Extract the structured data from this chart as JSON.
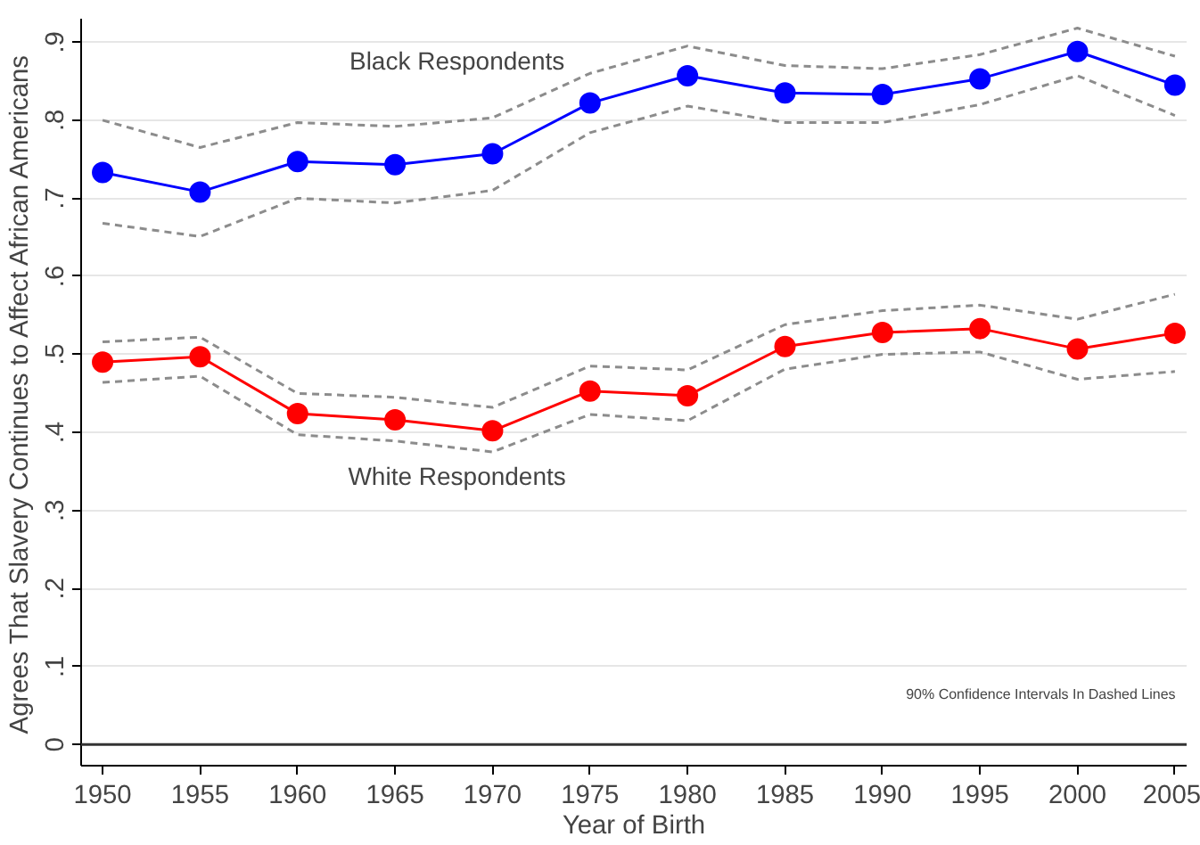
{
  "chart_data": {
    "type": "line",
    "xlabel": "Year of Birth",
    "ylabel": "Agrees That Slavery Continues to Affect African Americans",
    "x": [
      1950,
      1955,
      1960,
      1965,
      1970,
      1975,
      1980,
      1985,
      1990,
      1995,
      2000,
      2005
    ],
    "xlim": [
      1948.9,
      2005.6
    ],
    "xticks": [
      1950,
      1955,
      1960,
      1965,
      1970,
      1975,
      1980,
      1985,
      1990,
      1995,
      2000,
      2005
    ],
    "ylim": [
      -0.027,
      0.93
    ],
    "yticks": [
      0,
      {
        "value": 0.1,
        "label": ".1"
      },
      {
        "value": 0.2,
        "label": ".2"
      },
      {
        "value": 0.3,
        "label": ".3"
      },
      {
        "value": 0.4,
        "label": ".4"
      },
      {
        "value": 0.5,
        "label": ".5"
      },
      {
        "value": 0.6,
        "label": ".6"
      },
      {
        "value": 0.7,
        "label": ".7"
      },
      {
        "value": 0.8,
        "label": ".8"
      },
      {
        "value": 0.9,
        "label": ".9"
      }
    ],
    "grid": "y",
    "marker": "circle",
    "line_style": "solid",
    "series": [
      {
        "color": "#8c8c8c",
        "line_style": "dashed",
        "marker": "none",
        "values": [
          0.8,
          0.765,
          0.797,
          0.792,
          0.803,
          0.86,
          0.895,
          0.87,
          0.866,
          0.884,
          0.918,
          0.882
        ]
      },
      {
        "color": "#8c8c8c",
        "line_style": "dashed",
        "marker": "none",
        "values": [
          0.668,
          0.651,
          0.7,
          0.694,
          0.71,
          0.784,
          0.818,
          0.797,
          0.797,
          0.82,
          0.857,
          0.806
        ]
      },
      {
        "color": "#8c8c8c",
        "line_style": "dashed",
        "marker": "none",
        "values": [
          0.516,
          0.522,
          0.45,
          0.445,
          0.432,
          0.485,
          0.48,
          0.538,
          0.556,
          0.563,
          0.545,
          0.577
        ]
      },
      {
        "color": "#8c8c8c",
        "line_style": "dashed",
        "marker": "none",
        "values": [
          0.464,
          0.472,
          0.397,
          0.389,
          0.375,
          0.423,
          0.415,
          0.481,
          0.5,
          0.503,
          0.468,
          0.478
        ]
      },
      {
        "name": "Black Respondents",
        "color": "#0000ff",
        "values": [
          0.733,
          0.708,
          0.747,
          0.743,
          0.757,
          0.822,
          0.857,
          0.835,
          0.833,
          0.853,
          0.888,
          0.845
        ]
      },
      {
        "name": "White Respondents",
        "color": "#ff0000",
        "values": [
          0.49,
          0.497,
          0.424,
          0.416,
          0.402,
          0.453,
          0.447,
          0.51,
          0.528,
          0.533,
          0.507,
          0.527
        ]
      }
    ],
    "ref_lines": [
      {
        "axis": "y",
        "value": 0,
        "color": "#333333"
      }
    ],
    "annotations": [
      "90% Confidence Intervals In Dashed Lines"
    ]
  }
}
